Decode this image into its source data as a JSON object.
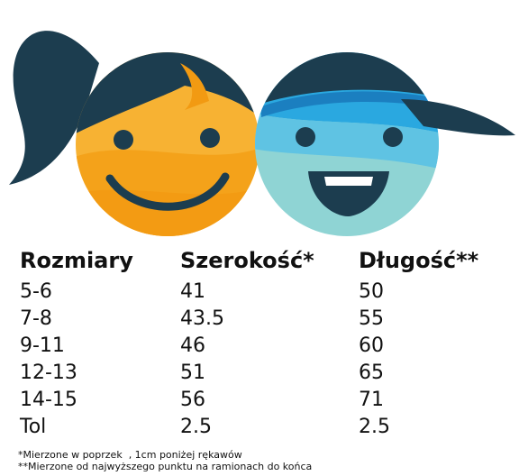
{
  "illustration": {
    "girl_face": "girl-face-icon",
    "boy_face": "boy-face-icon"
  },
  "table": {
    "headers": [
      "Rozmiary",
      "Szerokość*",
      "Długość**"
    ],
    "rows": [
      [
        "5-6",
        "41",
        "50"
      ],
      [
        "7-8",
        "43.5",
        "55"
      ],
      [
        "9-11",
        "46",
        "60"
      ],
      [
        "12-13",
        "51",
        "65"
      ],
      [
        "14-15",
        "56",
        "71"
      ],
      [
        "Tol",
        "2.5",
        "2.5"
      ]
    ]
  },
  "notes": {
    "width_note": "*Mierzone w poprzek  , 1cm poniżej rękawów",
    "length_note": "**Mierzone od najwyższego punktu na ramionach do końca"
  },
  "colors": {
    "navy": "#1c3d4f",
    "orange": "#f6a21c",
    "blue": "#2aa8e0",
    "teal": "#7fd0cf"
  }
}
